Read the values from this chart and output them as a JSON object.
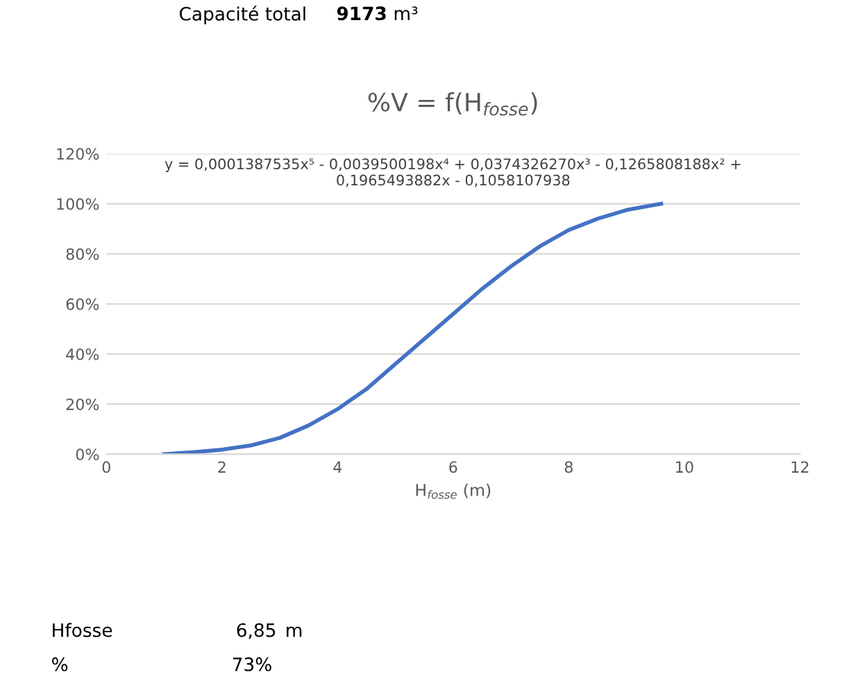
{
  "chart_data": {
    "type": "line",
    "title": "%V = f(H$_{fosse}$)",
    "xlabel": "H$_{fosse}$ (m)",
    "x": [
      1,
      1.5,
      2,
      2.5,
      3,
      3.5,
      4,
      4.5,
      5,
      5.5,
      6,
      6.5,
      7,
      7.5,
      8,
      8.5,
      9,
      9.6
    ],
    "series": [
      {
        "color": "#4472c4",
        "values": [
          0,
          0.8,
          1.8,
          3.5,
          6.5,
          11.5,
          18,
          26,
          36,
          46,
          56,
          66,
          75,
          83,
          89.5,
          94,
          97.5,
          100
        ]
      }
    ],
    "xlim": [
      0,
      12
    ],
    "xticks": [
      0,
      2,
      4,
      6,
      8,
      10,
      12
    ],
    "ylim": [
      0,
      120
    ],
    "yticks": [
      {
        "value": 0,
        "label": "0%"
      },
      {
        "value": 20,
        "label": "20%"
      },
      {
        "value": 40,
        "label": "40%"
      },
      {
        "value": 60,
        "label": "60%"
      },
      {
        "value": 80,
        "label": "80%"
      },
      {
        "value": 100,
        "label": "100%"
      },
      {
        "value": 120,
        "label": "120%"
      }
    ],
    "grid": "y",
    "marker": "none",
    "line_style": "solid",
    "annotations": [
      "y = 0,0001387535x⁵ - 0,0039500198x⁴ + 0,0374326270x³ - 0,1265808188x² +\n0,1965493882x - 0,1058107938",
      "Capacité total",
      "9173",
      "m³",
      "Hfosse",
      "6,85",
      "m",
      "%",
      "73%"
    ]
  }
}
